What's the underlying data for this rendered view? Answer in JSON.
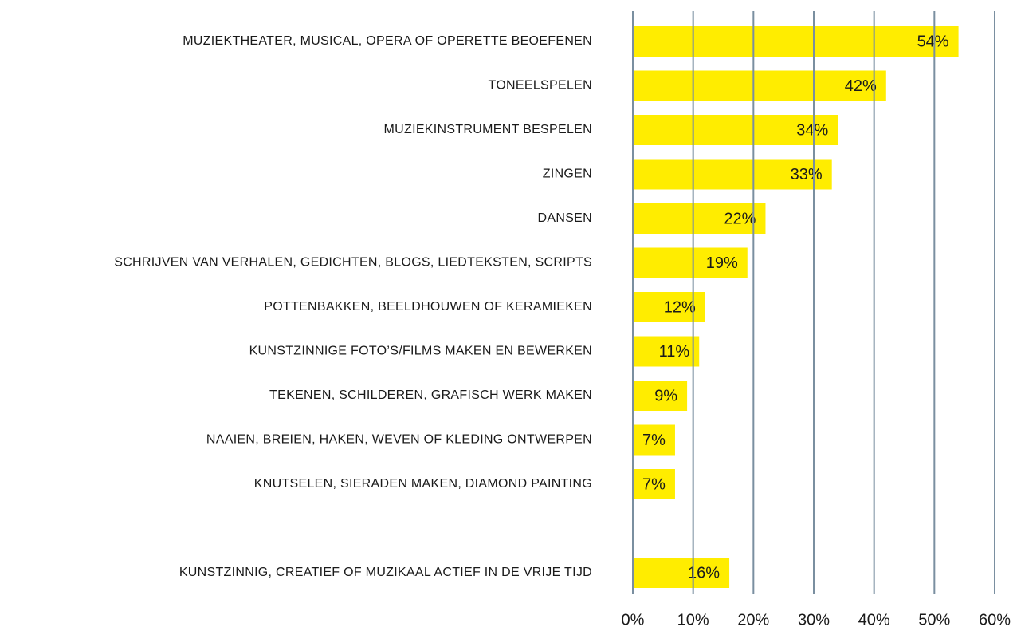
{
  "chart_data": {
    "type": "bar",
    "orientation": "horizontal",
    "categories": [
      "MUZIEKTHEATER, MUSICAL, OPERA OF OPERETTE BEOEFENEN",
      "TONEELSPELEN",
      "MUZIEKINSTRUMENT BESPELEN",
      "ZINGEN",
      "DANSEN",
      "SCHRIJVEN VAN VERHALEN, GEDICHTEN, BLOGS, LIEDTEKSTEN, SCRIPTS",
      "POTTENBAKKEN, BEELDHOUWEN OF KERAMIEKEN",
      "KUNSTZINNIGE FOTO’S/FILMS MAKEN EN BEWERKEN",
      "TEKENEN, SCHILDEREN, GRAFISCH WERK MAKEN",
      "NAAIEN, BREIEN, HAKEN, WEVEN OF KLEDING ONTWERPEN",
      "KNUTSELEN, SIERADEN MAKEN, DIAMOND PAINTING",
      null,
      "KUNSTZINNIG, CREATIEF OF MUZIKAAL ACTIEF IN DE VRIJE TIJD"
    ],
    "values": [
      54,
      42,
      34,
      33,
      22,
      19,
      12,
      11,
      9,
      7,
      7,
      null,
      16
    ],
    "value_labels": [
      "54%",
      "42%",
      "34%",
      "33%",
      "22%",
      "19%",
      "12%",
      "11%",
      "9%",
      "7%",
      "7%",
      null,
      "16%"
    ],
    "color": "#ffed00",
    "xlim": [
      0,
      60
    ],
    "xticks": [
      {
        "value": 0,
        "label": "0%"
      },
      {
        "value": 10,
        "label": "10%"
      },
      {
        "value": 20,
        "label": "20%"
      },
      {
        "value": 30,
        "label": "30%"
      },
      {
        "value": 40,
        "label": "40%"
      },
      {
        "value": 50,
        "label": "50%"
      },
      {
        "value": 60,
        "label": "60%"
      }
    ],
    "grid": true
  }
}
